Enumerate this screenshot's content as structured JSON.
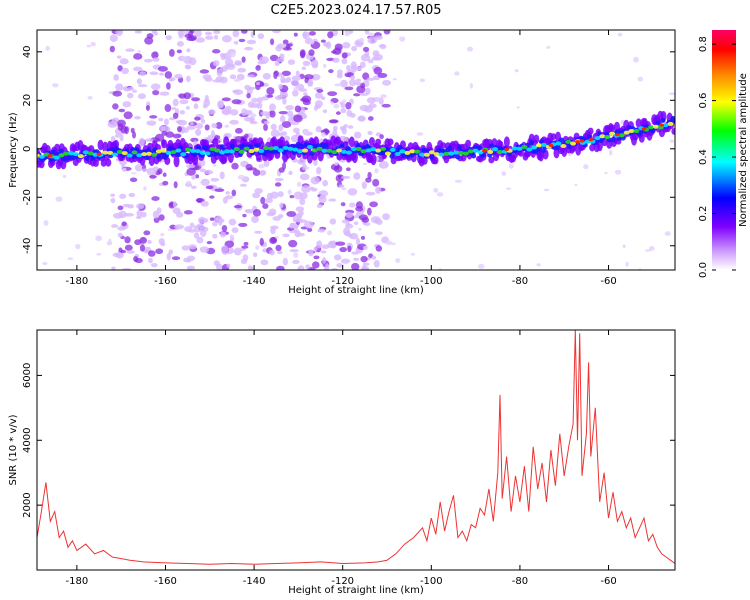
{
  "figure_title": "C2E5.2023.024.17.57.R05",
  "chart_data": [
    {
      "type": "heatmap",
      "xlabel": "Height of straight line (km)",
      "ylabel": "Frequency (Hz)",
      "xlim": [
        -189,
        -45
      ],
      "ylim": [
        -50,
        49
      ],
      "xticks": [
        -180,
        -160,
        -140,
        -120,
        -100,
        -80,
        -60
      ],
      "yticks": [
        -40,
        -20,
        0,
        20,
        40
      ],
      "grid": false,
      "ridge": {
        "x": [
          -189,
          -170,
          -150,
          -130,
          -110,
          -100,
          -90,
          -80,
          -70,
          -60,
          -50,
          -45
        ],
        "y": [
          -3,
          -2,
          -1,
          0,
          -1,
          -2,
          -1,
          0,
          2,
          5,
          9,
          11
        ]
      },
      "noise_region": {
        "x": [
          -172,
          -110
        ],
        "y": [
          -50,
          49
        ]
      },
      "colorbar": {
        "label": "Normalized spectral amplitude",
        "range": [
          0.0,
          0.85
        ],
        "ticks": [
          "0.0",
          "0.2",
          "0.4",
          "0.6",
          "0.8"
        ],
        "colormap": [
          "#ffffff",
          "#cc99ff",
          "#8000ff",
          "#0000ff",
          "#00ffff",
          "#00ff00",
          "#ffff00",
          "#ff8000",
          "#ff0000",
          "#ff0066"
        ]
      }
    },
    {
      "type": "line",
      "xlabel": "Height of straight line (km)",
      "ylabel": "SNR (10 * v/v)",
      "xlim": [
        -189,
        -45
      ],
      "ylim": [
        0,
        7400
      ],
      "xticks": [
        -180,
        -160,
        -140,
        -120,
        -100,
        -80,
        -60
      ],
      "yticks": [
        2000,
        4000,
        6000
      ],
      "grid": false,
      "series": [
        {
          "color": "#ee3333",
          "x": [
            -189,
            -188,
            -187,
            -186,
            -185,
            -184,
            -183,
            -182,
            -181,
            -180,
            -178,
            -176,
            -174,
            -172,
            -170,
            -168,
            -165,
            -160,
            -155,
            -150,
            -145,
            -140,
            -135,
            -130,
            -125,
            -120,
            -115,
            -112,
            -110,
            -108,
            -106,
            -104,
            -102,
            -101,
            -100,
            -99,
            -98,
            -97,
            -96,
            -95,
            -94,
            -93,
            -92,
            -91,
            -90,
            -89,
            -88,
            -87,
            -86,
            -85,
            -84.5,
            -84,
            -83,
            -82,
            -81,
            -80,
            -79,
            -78,
            -77,
            -76,
            -75,
            -74,
            -73,
            -72,
            -71,
            -70,
            -69,
            -68,
            -67.5,
            -67,
            -66.5,
            -66,
            -65,
            -64.5,
            -64,
            -63,
            -62,
            -61,
            -60,
            -59,
            -58,
            -57,
            -56,
            -55,
            -54,
            -53,
            -52,
            -51,
            -50,
            -49,
            -48,
            -47,
            -46,
            -45
          ],
          "y": [
            1000,
            1800,
            2700,
            1500,
            1800,
            1000,
            1200,
            700,
            900,
            600,
            800,
            500,
            600,
            400,
            350,
            300,
            250,
            220,
            200,
            180,
            200,
            180,
            200,
            220,
            250,
            200,
            220,
            250,
            300,
            500,
            800,
            1000,
            1300,
            900,
            1600,
            1100,
            2100,
            1200,
            1800,
            2300,
            1000,
            1200,
            900,
            1400,
            1300,
            1900,
            1700,
            2500,
            1500,
            3000,
            5400,
            2200,
            3500,
            1800,
            2900,
            2100,
            3200,
            1800,
            3800,
            2500,
            3300,
            2100,
            3700,
            2600,
            4200,
            2900,
            3800,
            4500,
            7400,
            4000,
            7300,
            2900,
            4200,
            6400,
            3500,
            5000,
            2100,
            3000,
            1600,
            2400,
            1500,
            1800,
            1300,
            1600,
            1000,
            1300,
            1600,
            900,
            1100,
            700,
            500,
            400,
            300,
            200
          ]
        }
      ]
    }
  ]
}
